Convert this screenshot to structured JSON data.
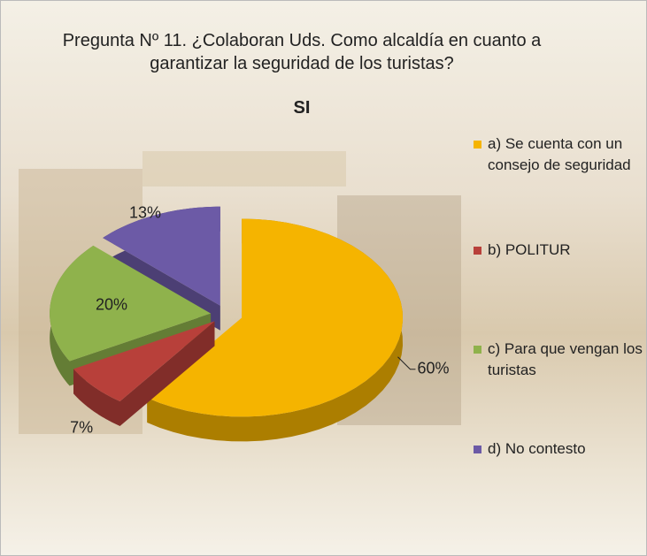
{
  "chart_data": {
    "type": "pie",
    "title": "Pregunta Nº 11. ¿Colaboran Uds. Como alcaldía en cuanto a garantizar la seguridad de los turistas?",
    "subtitle": "SI",
    "categories": [
      "a) Se cuenta con un consejo de seguridad",
      "b) POLITUR",
      "c) Para que vengan los turistas",
      "d) No contesto"
    ],
    "values": [
      60,
      7,
      20,
      13
    ],
    "value_labels": [
      "60%",
      "7%",
      "20%",
      "13%"
    ],
    "colors": [
      "#f5b400",
      "#b8403a",
      "#8fb24c",
      "#6c5aa6"
    ],
    "legend": "right"
  }
}
